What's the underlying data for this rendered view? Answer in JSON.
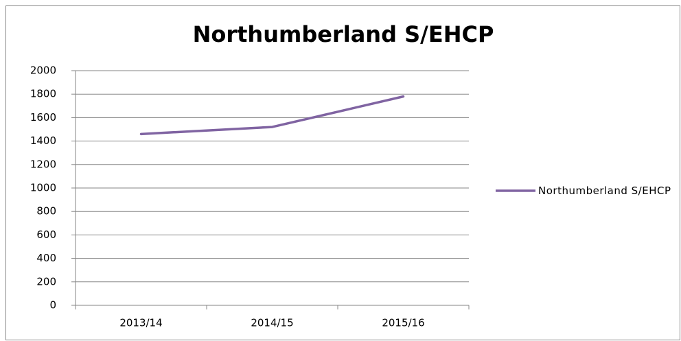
{
  "chart_data": {
    "type": "line",
    "title": "Northumberland S/EHCP",
    "categories": [
      "2013/14",
      "2014/15",
      "2015/16"
    ],
    "series": [
      {
        "name": "Northumberland S/EHCP",
        "color": "#8064a2",
        "values": [
          1460,
          1520,
          1780
        ]
      }
    ],
    "ylim": [
      0,
      2000
    ],
    "yticks": [
      0,
      200,
      400,
      600,
      800,
      1000,
      1200,
      1400,
      1600,
      1800,
      2000
    ],
    "grid": true,
    "legend": "right"
  }
}
